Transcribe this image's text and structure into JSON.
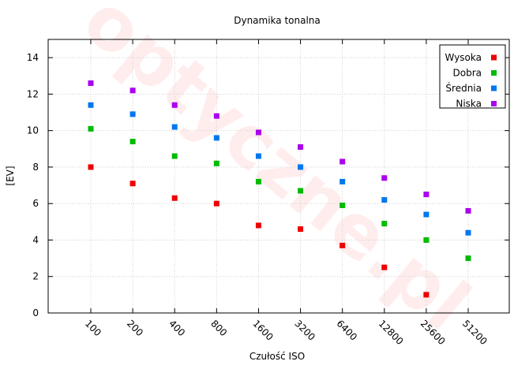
{
  "chart_data": {
    "type": "scatter",
    "title": "Dynamika tonalna",
    "xlabel": "Czułość ISO",
    "ylabel": "[EV]",
    "categories": [
      "100",
      "200",
      "400",
      "800",
      "1600",
      "3200",
      "6400",
      "12800",
      "25600",
      "51200"
    ],
    "ylim": [
      0,
      15
    ],
    "yticks": [
      0,
      2,
      4,
      6,
      8,
      10,
      12,
      14
    ],
    "grid": true,
    "legend_position": "top-right",
    "series": [
      {
        "name": "Wysoka",
        "color": "#ee0000",
        "values": [
          8.0,
          7.1,
          6.3,
          6.0,
          4.8,
          4.6,
          3.7,
          2.5,
          1.0,
          null
        ]
      },
      {
        "name": "Dobra",
        "color": "#00bb00",
        "values": [
          10.1,
          9.4,
          8.6,
          8.2,
          7.2,
          6.7,
          5.9,
          4.9,
          4.0,
          3.0
        ]
      },
      {
        "name": "Średnia",
        "color": "#0077ee",
        "values": [
          11.4,
          10.9,
          10.2,
          9.6,
          8.6,
          8.0,
          7.2,
          6.2,
          5.4,
          4.4
        ]
      },
      {
        "name": "Niska",
        "color": "#aa00ee",
        "values": [
          12.6,
          12.2,
          11.4,
          10.8,
          9.9,
          9.1,
          8.3,
          7.4,
          6.5,
          5.6
        ]
      }
    ],
    "watermark": "optyczne.pl"
  }
}
